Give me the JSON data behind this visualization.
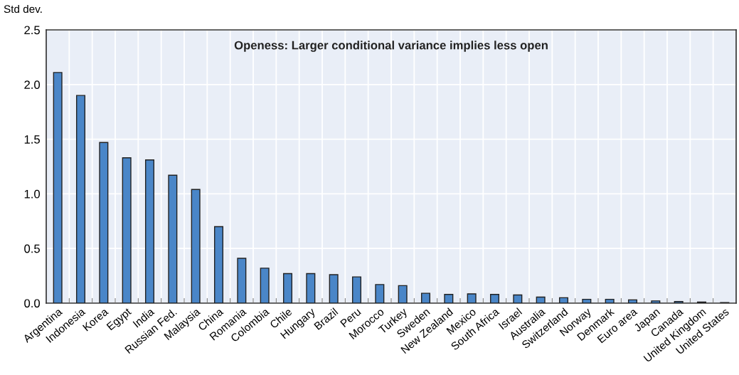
{
  "chart_data": {
    "type": "bar",
    "title": "Openess: Larger conditional variance implies less open",
    "ylabel": "Std dev.",
    "categories": [
      "Argentina",
      "Indonesia",
      "Korea",
      "Egypt",
      "India",
      "Russian Fed.",
      "Malaysia",
      "China",
      "Romania",
      "Colombia",
      "Chile",
      "Hungary",
      "Brazil",
      "Peru",
      "Morocco",
      "Turkey",
      "Sweden",
      "New Zealand",
      "Mexico",
      "South Africa",
      "Israel",
      "Australia",
      "Switzerland",
      "Norway",
      "Denmark",
      "Euro area",
      "Japan",
      "Canada",
      "United Kingdom",
      "United States"
    ],
    "values": [
      2.11,
      1.9,
      1.47,
      1.33,
      1.31,
      1.17,
      1.04,
      0.7,
      0.41,
      0.32,
      0.27,
      0.27,
      0.26,
      0.24,
      0.17,
      0.16,
      0.09,
      0.08,
      0.085,
      0.08,
      0.075,
      0.055,
      0.05,
      0.035,
      0.035,
      0.03,
      0.02,
      0.015,
      0.01,
      0.005
    ],
    "color": "#4a86c8",
    "ylim": [
      0,
      2.5
    ],
    "yticks": [
      {
        "value": 0,
        "label": "0.0"
      },
      {
        "value": 0.5,
        "label": "0.5"
      },
      {
        "value": 1,
        "label": "1.0"
      },
      {
        "value": 1.5,
        "label": "1.5"
      },
      {
        "value": 2,
        "label": "2.0"
      },
      {
        "value": 2.5,
        "label": "2.5"
      }
    ],
    "grid": true
  }
}
